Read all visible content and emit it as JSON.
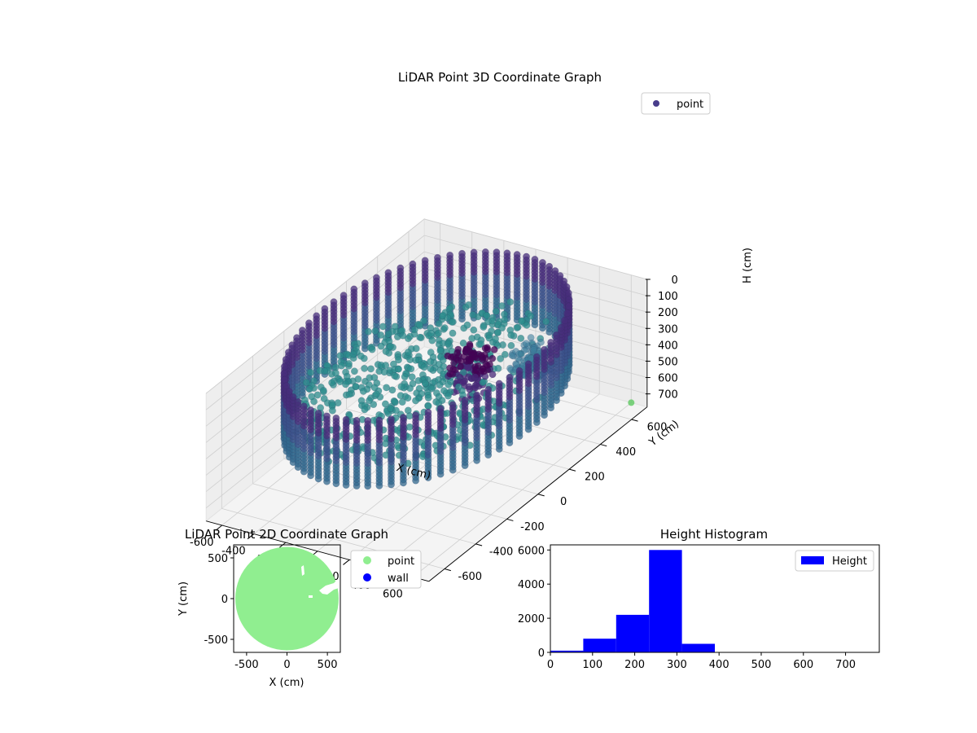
{
  "colors": {
    "point_dark": "#440154",
    "point_mid": "#3b528b",
    "point_teal": "#2c8c8c",
    "point_light": "#5ec962",
    "scatter2d_point": "#90ee90",
    "scatter2d_wall": "#0000ff",
    "hist": "#0000ff",
    "pane": "#f2f2f2",
    "grid": "#cfcfcf"
  },
  "chart_data": [
    {
      "type": "scatter",
      "projection": "3d",
      "title": "LiDAR Point 3D Coordinate Graph",
      "xlabel": "X (cm)",
      "ylabel": "Y (cm)",
      "zlabel": "H (cm)",
      "xlim": [
        -700,
        700
      ],
      "ylim": [
        -700,
        700
      ],
      "zlim": [
        780,
        0
      ],
      "z_inverted": true,
      "xticks": [
        "-600",
        "-400",
        "-200",
        "0",
        "200",
        "400",
        "600"
      ],
      "yticks": [
        "-600",
        "-400",
        "-200",
        "0",
        "200",
        "400",
        "600"
      ],
      "zticks": [
        "0",
        "100",
        "200",
        "300",
        "400",
        "500",
        "600",
        "700"
      ],
      "legend": {
        "entries": [
          "point"
        ],
        "placement": "upper-right"
      },
      "wall_ring": {
        "radius": 640,
        "h_min": 0,
        "h_max": 400,
        "azimuth_step_deg": 5
      },
      "clusters": [
        {
          "x": 180,
          "y": 100,
          "h_min": 100,
          "h_max": 380
        },
        {
          "x": 420,
          "y": 250,
          "h_min": 150,
          "h_max": 320
        }
      ],
      "outlier": {
        "x": 600,
        "y": 700,
        "h": 780
      },
      "grid": true
    },
    {
      "type": "scatter",
      "title": "LiDAR Point 2D Coordinate Graph",
      "xlabel": "X (cm)",
      "ylabel": "Y (cm)",
      "xlim": [
        -660,
        660
      ],
      "ylim": [
        -660,
        660
      ],
      "xticks": [
        "-500",
        "0",
        "500"
      ],
      "yticks": [
        "500",
        "0",
        "-500"
      ],
      "series": [
        {
          "name": "point",
          "shape": "disk",
          "center": [
            0,
            0
          ],
          "radius": 640
        },
        {
          "name": "wall"
        }
      ],
      "legend": {
        "entries": [
          "point",
          "wall"
        ],
        "placement": "outside-right"
      }
    },
    {
      "type": "bar",
      "title": "Height Histogram",
      "bin_edges": [
        0,
        78,
        156,
        234,
        312,
        390,
        468,
        546,
        624,
        702,
        780
      ],
      "values": [
        100,
        800,
        2200,
        6000,
        500,
        0,
        0,
        0,
        0,
        0
      ],
      "xlim": [
        0,
        780
      ],
      "ylim": [
        0,
        6300
      ],
      "xticks": [
        "0",
        "100",
        "200",
        "300",
        "400",
        "500",
        "600",
        "700"
      ],
      "yticks": [
        "0",
        "2000",
        "4000",
        "6000"
      ],
      "legend": {
        "entries": [
          "Height"
        ],
        "placement": "upper-right"
      }
    }
  ]
}
